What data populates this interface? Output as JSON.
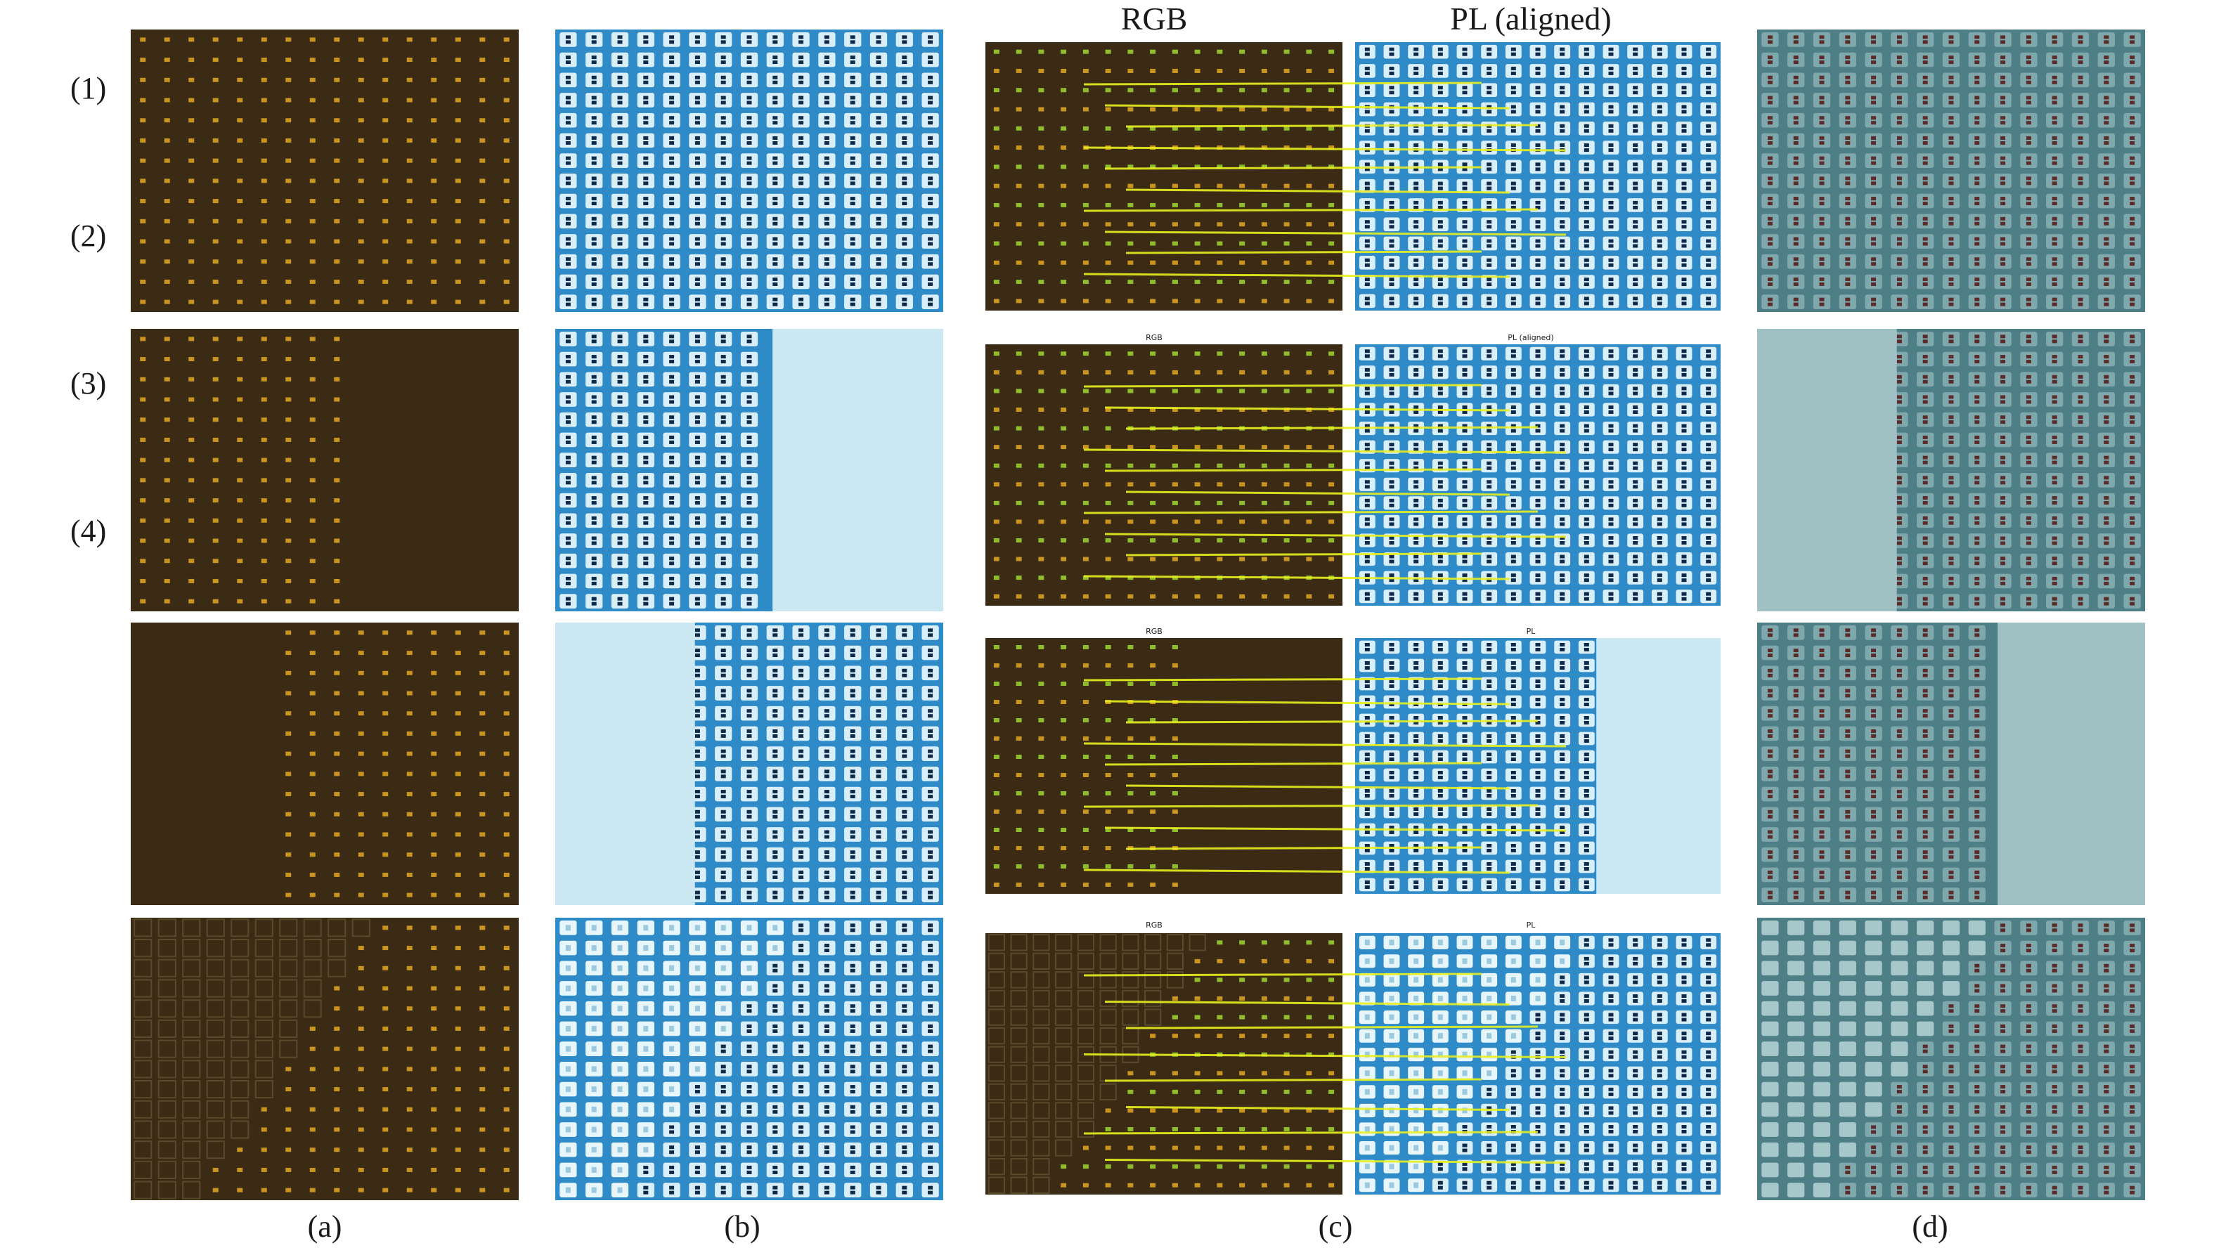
{
  "figure": {
    "row_labels": [
      "(1)",
      "(2)",
      "(3)",
      "(4)"
    ],
    "column_labels": [
      "(a)",
      "(b)",
      "(c)",
      "(d)"
    ],
    "panel_c_header": {
      "left": "RGB",
      "right": "PL (aligned)"
    },
    "panel_c_sub_titles": [
      {
        "left": "",
        "right": ""
      },
      {
        "left": "RGB",
        "right": "PL (aligned)"
      },
      {
        "left": "RGB",
        "right": "PL"
      },
      {
        "left": "RGB",
        "right": "PL"
      }
    ],
    "colors": {
      "rgb_background": "#3b2a14",
      "rgb_led": "#d9a020",
      "rgb_led_green": "#9acd32",
      "pl_background": "#2f8ac8",
      "pl_cell": "#d8eef8",
      "pl_dot": "#0e2a46",
      "pl_bright": "#cbe7f1",
      "match_line": "#e8f020",
      "overlay_background": "#4f7f86",
      "overlay_cell": "#7fa8ad",
      "overlay_dot": "#5a2b2a",
      "overlay_defect": "#9fc1c4"
    }
  }
}
